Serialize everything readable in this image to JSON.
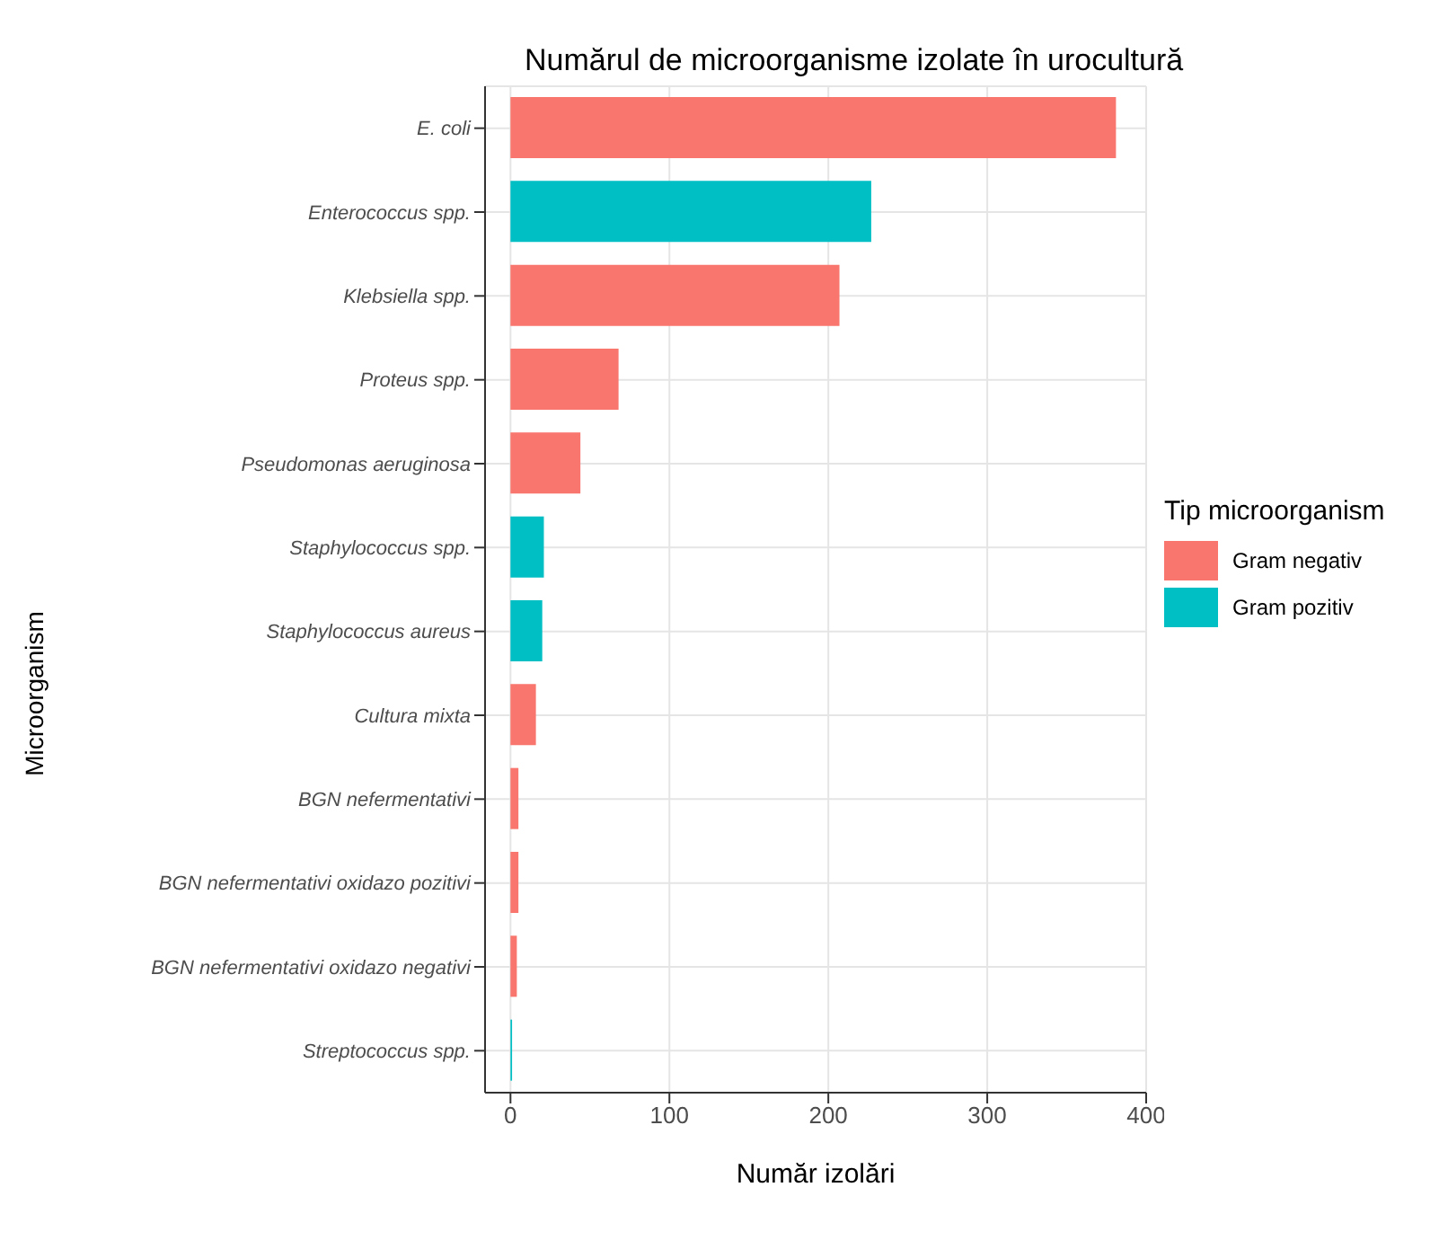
{
  "chart_data": {
    "type": "bar",
    "orientation": "horizontal",
    "stacked": true,
    "title": "Numărul de microorganisme izolate în urocultură",
    "xlabel": "Număr izolări",
    "ylabel": "Microorganism",
    "legend_title": "Tip microorganism",
    "legend": "right",
    "grid": true,
    "categories": [
      "E. coli",
      "Enterococcus spp.",
      "Klebsiella spp.",
      "Proteus spp.",
      "Pseudomonas aeruginosa",
      "Staphylococcus spp.",
      "Staphylococcus aureus",
      "Cultura mixta",
      "BGN nefermentativi",
      "BGN nefermentativi oxidazo pozitivi",
      "BGN nefermentativi oxidazo negativi",
      "Streptococcus spp."
    ],
    "series": [
      {
        "name": "Gram negativ",
        "color": "#f8766d",
        "values": [
          381,
          null,
          207,
          68,
          44,
          null,
          null,
          16,
          5,
          5,
          4,
          null
        ]
      },
      {
        "name": "Gram pozitiv",
        "color": "#00bfc4",
        "values": [
          null,
          227,
          null,
          null,
          null,
          21,
          20,
          null,
          null,
          null,
          null,
          1
        ]
      }
    ],
    "xlim": [
      -16,
      400
    ],
    "xticks": [
      0,
      100,
      200,
      300,
      400
    ]
  }
}
